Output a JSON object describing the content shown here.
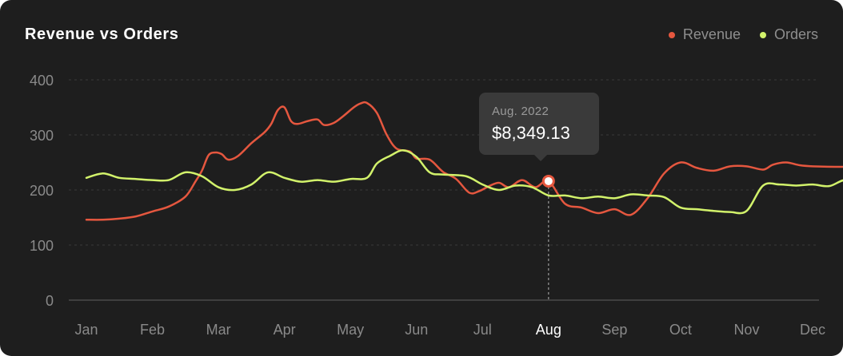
{
  "chart_data": {
    "type": "line",
    "title": "Revenue vs Orders",
    "categories": [
      "Jan",
      "Feb",
      "Mar",
      "Apr",
      "May",
      "Jun",
      "Jul",
      "Aug",
      "Sep",
      "Oct",
      "Nov",
      "Dec"
    ],
    "highlight_category": "Aug",
    "ylim": [
      0,
      400
    ],
    "yticks": [
      0,
      100,
      200,
      300,
      400
    ],
    "grid": true,
    "legend_position": "top-right",
    "series": [
      {
        "name": "Revenue",
        "color": "#e5573f",
        "points": [
          [
            0.0,
            146
          ],
          [
            0.25,
            146
          ],
          [
            0.5,
            148
          ],
          [
            0.75,
            152
          ],
          [
            1.0,
            161
          ],
          [
            1.25,
            170
          ],
          [
            1.5,
            188
          ],
          [
            1.65,
            215
          ],
          [
            1.75,
            235
          ],
          [
            1.85,
            263
          ],
          [
            1.95,
            268
          ],
          [
            2.05,
            265
          ],
          [
            2.15,
            255
          ],
          [
            2.3,
            262
          ],
          [
            2.5,
            285
          ],
          [
            2.7,
            305
          ],
          [
            2.8,
            320
          ],
          [
            2.9,
            345
          ],
          [
            3.0,
            350
          ],
          [
            3.1,
            325
          ],
          [
            3.2,
            320
          ],
          [
            3.35,
            325
          ],
          [
            3.5,
            328
          ],
          [
            3.6,
            318
          ],
          [
            3.75,
            322
          ],
          [
            3.9,
            335
          ],
          [
            4.05,
            350
          ],
          [
            4.15,
            357
          ],
          [
            4.25,
            358
          ],
          [
            4.4,
            340
          ],
          [
            4.55,
            300
          ],
          [
            4.7,
            275
          ],
          [
            4.9,
            270
          ],
          [
            5.0,
            257
          ],
          [
            5.2,
            255
          ],
          [
            5.4,
            233
          ],
          [
            5.6,
            220
          ],
          [
            5.8,
            195
          ],
          [
            5.95,
            198
          ],
          [
            6.1,
            207
          ],
          [
            6.25,
            213
          ],
          [
            6.4,
            205
          ],
          [
            6.6,
            218
          ],
          [
            6.8,
            205
          ],
          [
            7.0,
            216
          ],
          [
            7.25,
            175
          ],
          [
            7.5,
            168
          ],
          [
            7.75,
            158
          ],
          [
            8.0,
            165
          ],
          [
            8.25,
            155
          ],
          [
            8.5,
            185
          ],
          [
            8.75,
            230
          ],
          [
            9.0,
            250
          ],
          [
            9.25,
            240
          ],
          [
            9.5,
            235
          ],
          [
            9.75,
            243
          ],
          [
            10.0,
            243
          ],
          [
            10.25,
            237
          ],
          [
            10.4,
            246
          ],
          [
            10.6,
            250
          ],
          [
            10.8,
            245
          ],
          [
            11.0,
            243
          ],
          [
            11.5,
            242
          ],
          [
            12.0,
            243
          ]
        ]
      },
      {
        "name": "Orders",
        "color": "#d2f26b",
        "points": [
          [
            0.0,
            222
          ],
          [
            0.25,
            230
          ],
          [
            0.5,
            222
          ],
          [
            0.75,
            220
          ],
          [
            1.0,
            218
          ],
          [
            1.25,
            218
          ],
          [
            1.5,
            232
          ],
          [
            1.75,
            225
          ],
          [
            2.0,
            205
          ],
          [
            2.25,
            200
          ],
          [
            2.5,
            210
          ],
          [
            2.75,
            232
          ],
          [
            3.0,
            222
          ],
          [
            3.25,
            215
          ],
          [
            3.5,
            218
          ],
          [
            3.75,
            215
          ],
          [
            4.0,
            220
          ],
          [
            4.25,
            222
          ],
          [
            4.4,
            248
          ],
          [
            4.6,
            262
          ],
          [
            4.8,
            272
          ],
          [
            5.0,
            260
          ],
          [
            5.2,
            232
          ],
          [
            5.4,
            228
          ],
          [
            5.75,
            225
          ],
          [
            6.0,
            210
          ],
          [
            6.25,
            200
          ],
          [
            6.5,
            208
          ],
          [
            6.75,
            205
          ],
          [
            7.0,
            190
          ],
          [
            7.25,
            190
          ],
          [
            7.5,
            185
          ],
          [
            7.75,
            188
          ],
          [
            8.0,
            185
          ],
          [
            8.25,
            192
          ],
          [
            8.5,
            190
          ],
          [
            8.75,
            187
          ],
          [
            9.0,
            168
          ],
          [
            9.25,
            165
          ],
          [
            9.5,
            162
          ],
          [
            9.75,
            160
          ],
          [
            10.0,
            162
          ],
          [
            10.25,
            208
          ],
          [
            10.5,
            210
          ],
          [
            10.75,
            208
          ],
          [
            11.0,
            210
          ],
          [
            11.25,
            207
          ],
          [
            11.5,
            218
          ],
          [
            11.75,
            205
          ],
          [
            12.0,
            215
          ]
        ]
      }
    ]
  },
  "tooltip": {
    "label": "Aug. 2022",
    "value": "$8,349.13"
  }
}
